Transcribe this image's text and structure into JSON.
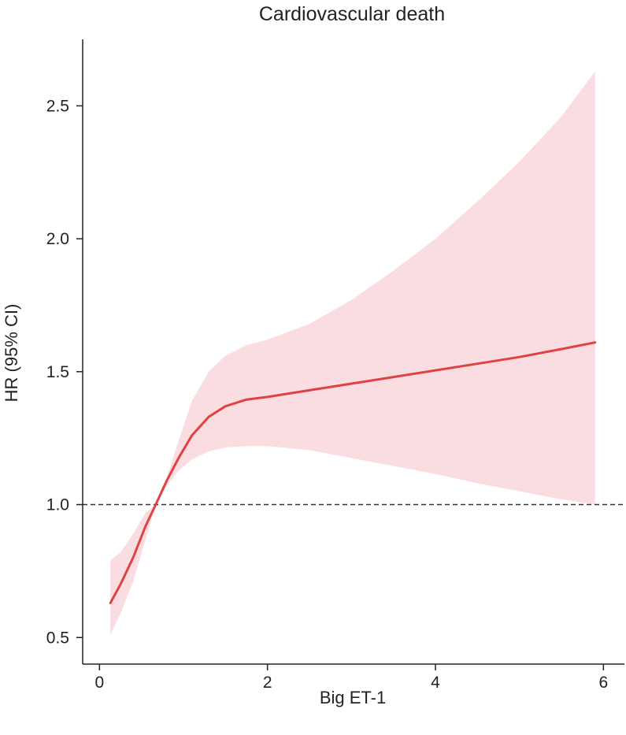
{
  "chart_data": {
    "type": "line",
    "title": "Cardiovascular death",
    "xlabel": "Big ET-1",
    "ylabel": "HR (95% CI)",
    "xlim": [
      -0.2,
      6.25
    ],
    "ylim": [
      0.4,
      2.75
    ],
    "x_ticks": [
      0,
      2,
      4,
      6
    ],
    "x_tick_labels": [
      "0",
      "2",
      "4",
      "6"
    ],
    "y_ticks": [
      0.5,
      1.0,
      1.5,
      2.0,
      2.5
    ],
    "y_tick_labels": [
      "0.5",
      "1.0",
      "1.5",
      "2.0",
      "2.5"
    ],
    "reference_line": {
      "y": 1.0,
      "style": "dashed"
    },
    "grid": false,
    "series": [
      {
        "x": [
          0.13,
          0.25,
          0.4,
          0.55,
          0.67,
          0.8,
          0.95,
          1.1,
          1.3,
          1.5,
          1.75,
          2.0,
          2.5,
          3.0,
          3.5,
          4.0,
          4.5,
          5.0,
          5.5,
          5.9
        ],
        "y": [
          0.63,
          0.7,
          0.8,
          0.92,
          1.0,
          1.09,
          1.18,
          1.26,
          1.33,
          1.37,
          1.395,
          1.405,
          1.43,
          1.455,
          1.48,
          1.505,
          1.53,
          1.555,
          1.585,
          1.61
        ],
        "lower": [
          0.51,
          0.59,
          0.71,
          0.87,
          1.0,
          1.07,
          1.13,
          1.17,
          1.2,
          1.215,
          1.22,
          1.22,
          1.205,
          1.175,
          1.145,
          1.115,
          1.08,
          1.05,
          1.02,
          1.0
        ],
        "upper": [
          0.79,
          0.82,
          0.89,
          0.97,
          1.0,
          1.1,
          1.25,
          1.39,
          1.5,
          1.56,
          1.6,
          1.62,
          1.68,
          1.77,
          1.88,
          2.0,
          2.14,
          2.29,
          2.46,
          2.63
        ],
        "color": "#e04242",
        "ci_color": "#fadde1"
      }
    ]
  }
}
